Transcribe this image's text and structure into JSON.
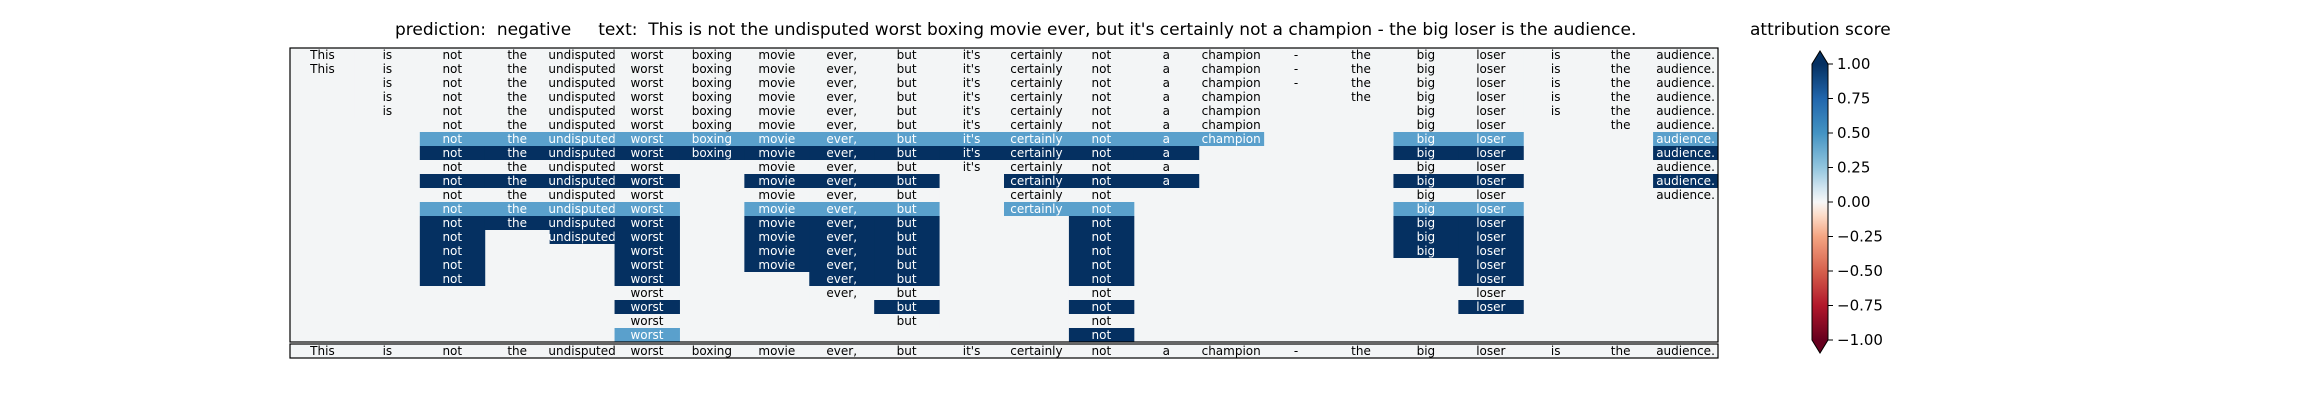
{
  "title": "prediction:  negative     text:  This is not the undisputed worst boxing movie ever, but it's certainly not a champion - the big loser is the audience.",
  "colorbar_title": "attribution score",
  "colors": {
    "strong_positive": "#053061",
    "medium_positive": "#5aa0cc",
    "neutral": "#f3f5f6",
    "strong_negative": "#67001f"
  },
  "chart_data": {
    "type": "heatmap",
    "tokens": [
      "This",
      "is",
      "not",
      "the",
      "undisputed",
      "worst",
      "boxing",
      "movie",
      "ever,",
      "but",
      "it's",
      "certainly",
      "not",
      "a",
      "champion",
      "-",
      "the",
      "big",
      "loser",
      "is",
      "the",
      "audience."
    ],
    "bottom_row_labels": [
      "This",
      "is",
      "not",
      "the",
      "undisputed",
      "worst",
      "boxing",
      "movie",
      "ever,",
      "but",
      "it's",
      "certainly",
      "not",
      "a",
      "champion",
      "-",
      "the",
      "big",
      "loser",
      "is",
      "the",
      "audience."
    ],
    "rows": [
      [
        0,
        0,
        0,
        0,
        0,
        0,
        0,
        0,
        0,
        0,
        0,
        0,
        0,
        0,
        0,
        0,
        0,
        0,
        0,
        0,
        0,
        0
      ],
      [
        0,
        0,
        0,
        0,
        0,
        0,
        0,
        0,
        0,
        0,
        0,
        0,
        0,
        0,
        0,
        0,
        0,
        0,
        0,
        0,
        0,
        0
      ],
      [
        null,
        0,
        0,
        0,
        0,
        0,
        0,
        0,
        0,
        0,
        0,
        0,
        0,
        0,
        0,
        0,
        0,
        0,
        0,
        0,
        0,
        0
      ],
      [
        null,
        0,
        0,
        0,
        0,
        0,
        0,
        0,
        0,
        0,
        0,
        0,
        0,
        0,
        0,
        null,
        0,
        0,
        0,
        0,
        0,
        0
      ],
      [
        null,
        0,
        0,
        0,
        0,
        0,
        0,
        0,
        0,
        0,
        0,
        0,
        0,
        0,
        0,
        null,
        null,
        0,
        0,
        0,
        0,
        0
      ],
      [
        null,
        null,
        0,
        0,
        0,
        0,
        0,
        0,
        0,
        0,
        0,
        0,
        0,
        0,
        0,
        null,
        null,
        0,
        0,
        null,
        0,
        0
      ],
      [
        null,
        null,
        0.55,
        0.55,
        0.55,
        0.55,
        0.55,
        0.55,
        0.55,
        0.55,
        0.55,
        0.55,
        0.55,
        0.55,
        0.55,
        null,
        null,
        0.55,
        0.55,
        null,
        null,
        0.55
      ],
      [
        null,
        null,
        1,
        1,
        1,
        1,
        1,
        1,
        1,
        1,
        1,
        1,
        1,
        1,
        null,
        null,
        null,
        1,
        1,
        null,
        null,
        1
      ],
      [
        null,
        null,
        0,
        0,
        0,
        0,
        null,
        0,
        0,
        0,
        0,
        0,
        0,
        0,
        null,
        null,
        null,
        0,
        0,
        null,
        null,
        0
      ],
      [
        null,
        null,
        1,
        1,
        1,
        1,
        null,
        1,
        1,
        1,
        null,
        1,
        1,
        1,
        null,
        null,
        null,
        1,
        1,
        null,
        null,
        1
      ],
      [
        null,
        null,
        0,
        0,
        0,
        0,
        null,
        0,
        0,
        0,
        null,
        0,
        0,
        null,
        null,
        null,
        null,
        0,
        0,
        null,
        null,
        0
      ],
      [
        null,
        null,
        0.55,
        0.55,
        0.55,
        0.55,
        null,
        0.55,
        0.55,
        0.55,
        null,
        0.55,
        0.55,
        null,
        null,
        null,
        null,
        0.55,
        0.55,
        null,
        null,
        null
      ],
      [
        null,
        null,
        1,
        1,
        1,
        1,
        null,
        1,
        1,
        1,
        null,
        null,
        1,
        null,
        null,
        null,
        null,
        1,
        1,
        null,
        null,
        null
      ],
      [
        null,
        null,
        1,
        null,
        1,
        1,
        null,
        1,
        1,
        1,
        null,
        null,
        1,
        null,
        null,
        null,
        null,
        1,
        1,
        null,
        null,
        null
      ],
      [
        null,
        null,
        1,
        null,
        null,
        1,
        null,
        1,
        1,
        1,
        null,
        null,
        1,
        null,
        null,
        null,
        null,
        1,
        1,
        null,
        null,
        null
      ],
      [
        null,
        null,
        1,
        null,
        null,
        1,
        null,
        1,
        1,
        1,
        null,
        null,
        1,
        null,
        null,
        null,
        null,
        null,
        1,
        null,
        null,
        null
      ],
      [
        null,
        null,
        1,
        null,
        null,
        1,
        null,
        null,
        1,
        1,
        null,
        null,
        1,
        null,
        null,
        null,
        null,
        null,
        1,
        null,
        null,
        null
      ],
      [
        null,
        null,
        null,
        null,
        null,
        0,
        null,
        null,
        0,
        0,
        null,
        null,
        0,
        null,
        null,
        null,
        null,
        null,
        0,
        null,
        null,
        null
      ],
      [
        null,
        null,
        null,
        null,
        null,
        1,
        null,
        null,
        null,
        1,
        null,
        null,
        1,
        null,
        null,
        null,
        null,
        null,
        1,
        null,
        null,
        null
      ],
      [
        null,
        null,
        null,
        null,
        null,
        0,
        null,
        null,
        null,
        0,
        null,
        null,
        0,
        null,
        null,
        null,
        null,
        null,
        null,
        null,
        null,
        null
      ],
      [
        null,
        null,
        null,
        null,
        null,
        0.55,
        null,
        null,
        null,
        null,
        null,
        null,
        1,
        null,
        null,
        null,
        null,
        null,
        null,
        null,
        null,
        null
      ]
    ],
    "colorbar": {
      "min": -1.0,
      "max": 1.0,
      "ticks": [
        "1.00",
        "0.75",
        "0.50",
        "0.25",
        "0.00",
        "−0.25",
        "−0.50",
        "−0.75",
        "−1.00"
      ],
      "tick_values": [
        1.0,
        0.75,
        0.5,
        0.25,
        0.0,
        -0.25,
        -0.5,
        -0.75,
        -1.0
      ],
      "extend": "both"
    }
  }
}
